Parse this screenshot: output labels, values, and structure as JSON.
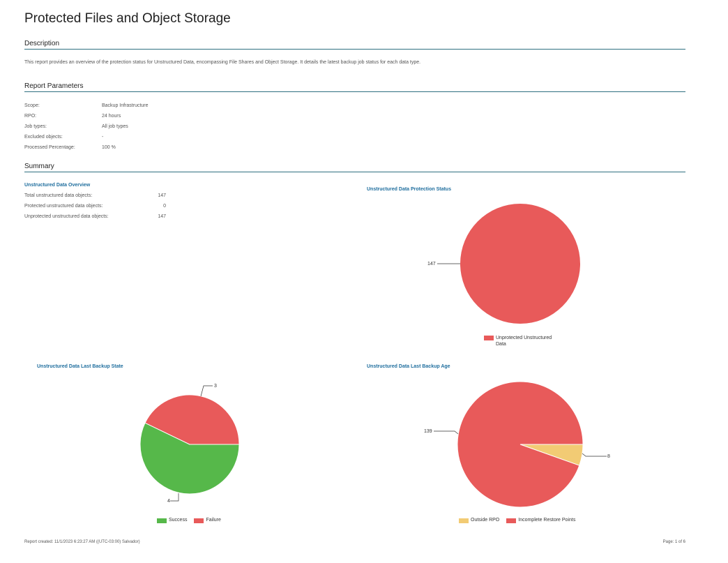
{
  "title": "Protected Files and Object Storage",
  "description": {
    "heading": "Description",
    "text": "This report provides an overview of the protection status for Unstructured Data, encompassing File Shares and Object Storage. It details the latest backup job status for each data type."
  },
  "parameters": {
    "heading": "Report Parameters",
    "rows": [
      {
        "label": "Scope:",
        "value": "Backup Infrastructure"
      },
      {
        "label": "RPO:",
        "value": "24 hours"
      },
      {
        "label": "Job types:",
        "value": "All job types"
      },
      {
        "label": "Excluded objects:",
        "value": "-"
      },
      {
        "label": "Processed Percentage:",
        "value": "100 %"
      }
    ]
  },
  "summary": {
    "heading": "Summary",
    "overview": {
      "title": "Unstructured Data Overview",
      "rows": [
        {
          "label": "Total unstructured data objects:",
          "value": "147"
        },
        {
          "label": "Protected unstructured data objects:",
          "value": "0"
        },
        {
          "label": "Unprotected unstructured data objects:",
          "value": "147"
        }
      ]
    }
  },
  "colors": {
    "red": "#e85a5a",
    "green": "#56b84a",
    "yellow": "#f2cb74",
    "accent": "#1f6e9e",
    "rule": "#2e6f80"
  },
  "chart_data": [
    {
      "type": "pie",
      "title": "Unstructured Data Protection Status",
      "categories": [
        "Unprotected Unstructured Data"
      ],
      "values": [
        147
      ],
      "labels": [
        "147"
      ],
      "legend": [
        {
          "name": "Unprotected Unstructured Data",
          "color": "#e85a5a"
        }
      ]
    },
    {
      "type": "pie",
      "title": "Unstructured Data Last Backup State",
      "categories": [
        "Success",
        "Failure"
      ],
      "values": [
        4,
        3
      ],
      "labels": [
        "4",
        "3"
      ],
      "legend": [
        {
          "name": "Success",
          "color": "#56b84a"
        },
        {
          "name": "Failure",
          "color": "#e85a5a"
        }
      ]
    },
    {
      "type": "pie",
      "title": "Unstructured Data Last Backup Age",
      "categories": [
        "Outside RPO",
        "Incomplete Restore Points"
      ],
      "values": [
        8,
        139
      ],
      "labels": [
        "8",
        "139"
      ],
      "legend": [
        {
          "name": "Outside RPO",
          "color": "#f2cb74"
        },
        {
          "name": "Incomplete Restore Points",
          "color": "#e85a5a"
        }
      ]
    }
  ],
  "footer": {
    "created": "Report created: 11/1/2023 6:23:27 AM ((UTC-03:00) Salvador)",
    "page": "Page: 1 of 6"
  }
}
